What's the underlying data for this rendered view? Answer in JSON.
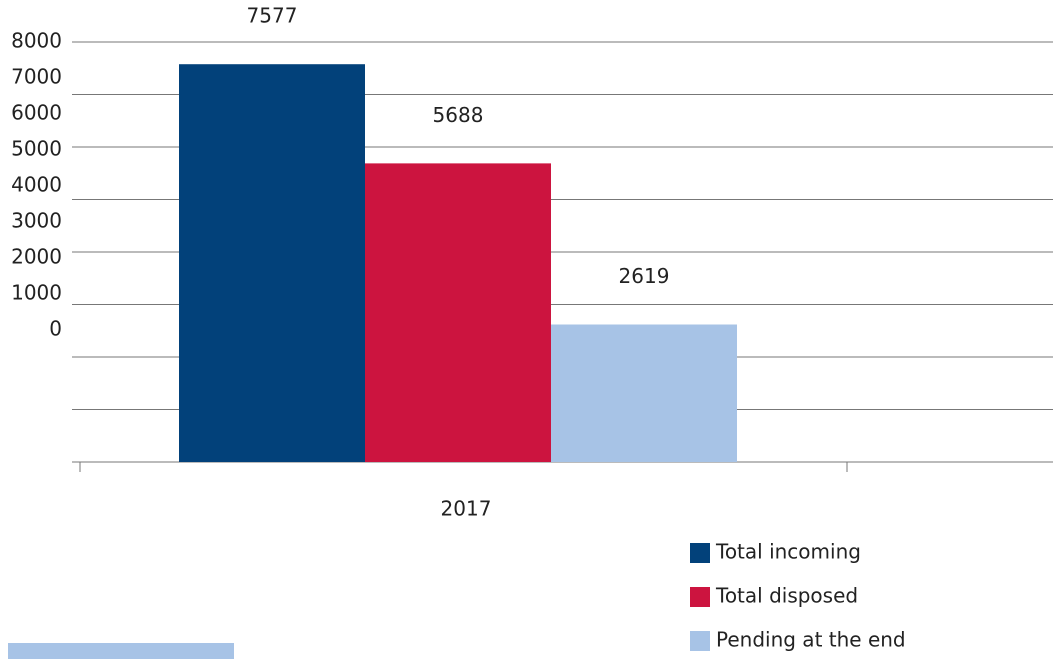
{
  "chart_data": {
    "type": "bar",
    "categories": [
      "2017"
    ],
    "series": [
      {
        "name": "Total incoming",
        "color": "#02417a",
        "values": [
          7577
        ]
      },
      {
        "name": "Total disposed",
        "color": "#cc143f",
        "values": [
          5688
        ]
      },
      {
        "name": "Pending at the end",
        "color": "#a7c3e6",
        "values": [
          2619
        ]
      }
    ],
    "ylim": [
      0,
      8000
    ],
    "yticks": [
      0,
      1000,
      2000,
      3000,
      4000,
      5000,
      6000,
      7000,
      8000
    ],
    "grid": true,
    "legend": "bottom-right"
  }
}
